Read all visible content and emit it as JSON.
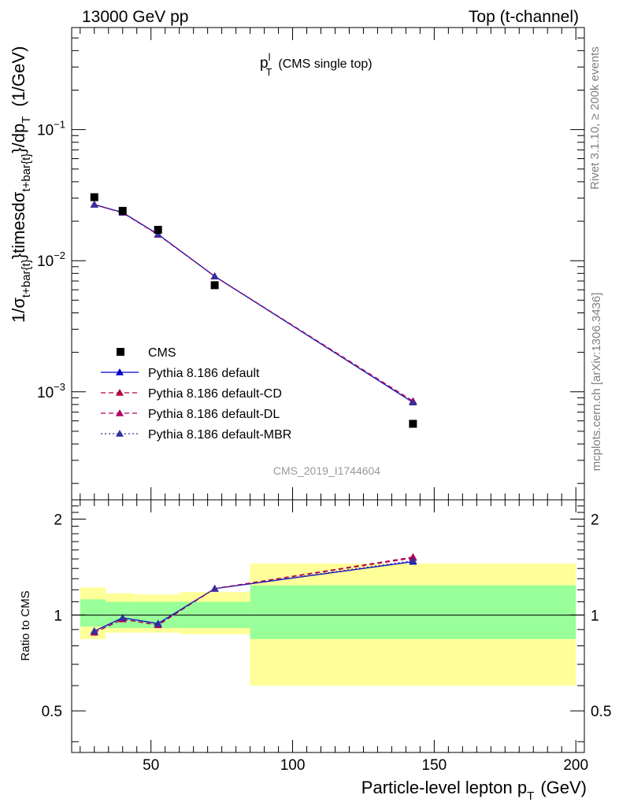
{
  "header": {
    "left": "13000 GeV pp",
    "right": "Top (t-channel)"
  },
  "side": {
    "rivet": "Rivet 3.1.10, ≥ 200k events",
    "mcplots": "mcplots.cern.ch [arXiv:1306.3436]"
  },
  "chart_data": [
    {
      "type": "scatter",
      "title": {
        "main": "p",
        "sup": "l",
        "sub": "T",
        "note": "(CMS single top)"
      },
      "watermark": "CMS_2019_I1744604",
      "ylabel": {
        "p1": "1/σ",
        "p2": "t+bar{t}",
        "p3": "}timesdσ",
        "p4": "t+bar{t}",
        "p5": "}/dp",
        "p6": "T",
        "p7": "(1/GeV)"
      },
      "xlim": [
        22,
        203
      ],
      "ylim": [
        0.00015,
        0.6
      ],
      "log_y": true,
      "y_ticks": [
        {
          "value": 0.1,
          "base": "10",
          "exp": "−1"
        },
        {
          "value": 0.01,
          "base": "10",
          "exp": "−2"
        },
        {
          "value": 0.001,
          "base": "10",
          "exp": "−3"
        }
      ],
      "legend_position": "lower-left",
      "series": [
        {
          "name": "CMS",
          "color": "#000000",
          "marker": "square",
          "style": "data",
          "x": [
            30,
            40,
            52.5,
            72.5,
            142.5
          ],
          "y": [
            0.0305,
            0.024,
            0.0172,
            0.0065,
            0.00057
          ]
        },
        {
          "name": "Pythia 8.186 default",
          "color": "#0000cc",
          "marker": "triangle",
          "style": "solid",
          "x": [
            30,
            40,
            52.5,
            72.5,
            142.5
          ],
          "y": [
            0.0268,
            0.0233,
            0.0159,
            0.0076,
            0.00083
          ]
        },
        {
          "name": "Pythia 8.186 default-CD",
          "color": "#b00040",
          "marker": "triangle",
          "style": "dashed",
          "x": [
            30,
            40,
            52.5,
            72.5,
            142.5
          ],
          "y": [
            0.0268,
            0.0232,
            0.0158,
            0.0076,
            0.00084
          ]
        },
        {
          "name": "Pythia 8.186 default-DL",
          "color": "#b00060",
          "marker": "triangle",
          "style": "dashed",
          "x": [
            30,
            40,
            52.5,
            72.5,
            142.5
          ],
          "y": [
            0.0268,
            0.0232,
            0.0158,
            0.0076,
            0.00085
          ]
        },
        {
          "name": "Pythia 8.186 default-MBR",
          "color": "#3030a0",
          "marker": "triangle",
          "style": "dotted",
          "x": [
            30,
            40,
            52.5,
            72.5,
            142.5
          ],
          "y": [
            0.0268,
            0.0233,
            0.0159,
            0.0076,
            0.00083
          ]
        }
      ]
    },
    {
      "type": "scatter",
      "ylabel": "Ratio to CMS",
      "xlabel": {
        "main": "Particle-level lepton p",
        "sub": "T",
        "unit": "(GeV)"
      },
      "xlim": [
        22,
        203
      ],
      "ylim": [
        0.37,
        2.3
      ],
      "x_ticks": [
        {
          "value": 50,
          "label": "50"
        },
        {
          "value": 100,
          "label": "100"
        },
        {
          "value": 150,
          "label": "150"
        },
        {
          "value": 200,
          "label": "200"
        }
      ],
      "y_ticks": [
        {
          "value": 0.5,
          "label": "0.5"
        },
        {
          "value": 1,
          "label": "1"
        },
        {
          "value": 2,
          "label": "2"
        }
      ],
      "bands": [
        {
          "x0": 25,
          "x1": 34,
          "stat": [
            0.92,
            1.12
          ],
          "total": [
            0.84,
            1.22
          ]
        },
        {
          "x0": 34,
          "x1": 44,
          "stat": [
            0.91,
            1.1
          ],
          "total": [
            0.88,
            1.17
          ]
        },
        {
          "x0": 44,
          "x1": 60,
          "stat": [
            0.91,
            1.1
          ],
          "total": [
            0.88,
            1.16
          ]
        },
        {
          "x0": 60,
          "x1": 85,
          "stat": [
            0.91,
            1.1
          ],
          "total": [
            0.87,
            1.18
          ]
        },
        {
          "x0": 85,
          "x1": 200,
          "stat": [
            0.84,
            1.24
          ],
          "total": [
            0.6,
            1.45
          ]
        }
      ],
      "band_colors": {
        "stat": "#99ff99",
        "total": "#ffff99"
      },
      "series": [
        {
          "name": "Pythia 8.186 default",
          "color": "#0000cc",
          "style": "solid",
          "x": [
            30,
            40,
            52.5,
            72.5,
            142.5
          ],
          "y": [
            0.89,
            0.98,
            0.94,
            1.21,
            1.47
          ]
        },
        {
          "name": "Pythia 8.186 default-CD",
          "color": "#b00040",
          "style": "dashed",
          "x": [
            30,
            40,
            52.5,
            72.5,
            142.5
          ],
          "y": [
            0.88,
            0.97,
            0.93,
            1.21,
            1.52
          ]
        },
        {
          "name": "Pythia 8.186 default-DL",
          "color": "#b00060",
          "style": "dashed",
          "x": [
            30,
            40,
            52.5,
            72.5,
            142.5
          ],
          "y": [
            0.88,
            0.97,
            0.93,
            1.21,
            1.51
          ]
        },
        {
          "name": "Pythia 8.186 default-MBR",
          "color": "#3030a0",
          "style": "dotted",
          "x": [
            30,
            40,
            52.5,
            72.5,
            142.5
          ],
          "y": [
            0.89,
            0.98,
            0.94,
            1.21,
            1.48
          ]
        }
      ]
    }
  ]
}
